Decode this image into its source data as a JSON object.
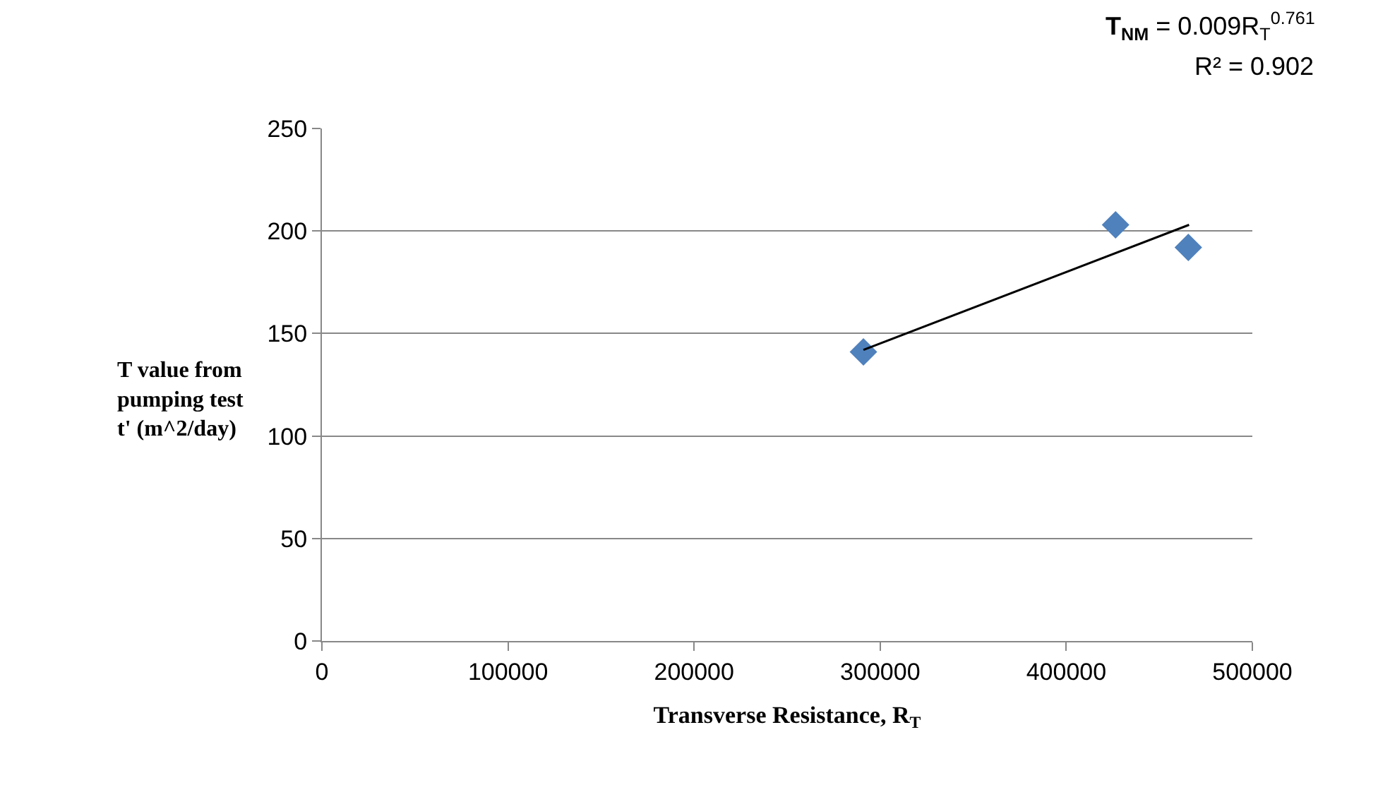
{
  "chart_data": {
    "type": "scatter",
    "xlabel": "Transverse Resistance, R$_{T}$",
    "ylabel": "T value from pumping test t' (m^2/day)",
    "xlim": [
      0,
      500000
    ],
    "xticks": [
      0,
      100000,
      200000,
      300000,
      400000,
      500000
    ],
    "ylim": [
      0,
      250
    ],
    "yticks": [
      0,
      50,
      100,
      150,
      200,
      250
    ],
    "grid": "y",
    "marker": "diamond",
    "annotations": [
      "T$_{NM}$ = 0.009R$_{T}$$^{0.761}$",
      "R² = 0.902"
    ],
    "series": [
      {
        "color": "#4f81bd",
        "x": [
          291000,
          426500,
          465600
        ],
        "values": [
          141,
          203,
          192
        ]
      },
      {
        "type": "line",
        "color": "#000000",
        "marker": "none",
        "x": [
          291000,
          466000
        ],
        "values": [
          142,
          203
        ]
      }
    ]
  }
}
